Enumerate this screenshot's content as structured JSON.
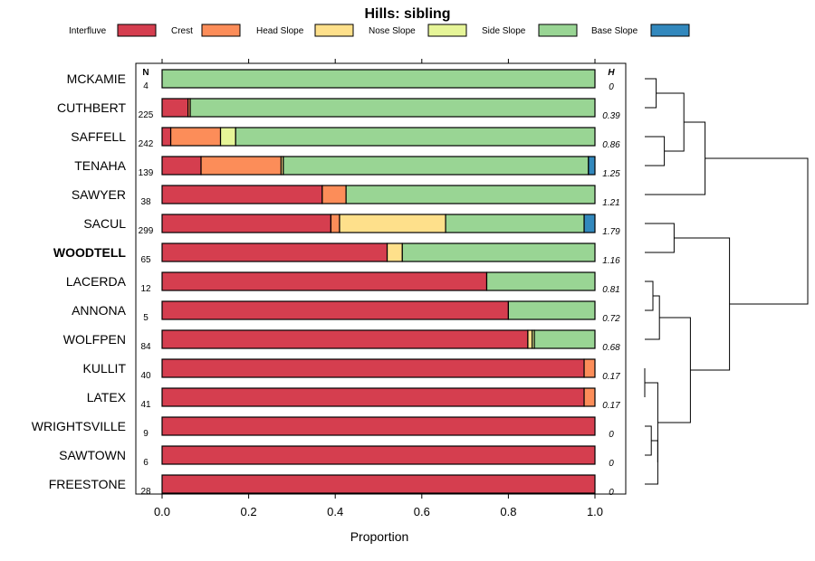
{
  "chart_data": {
    "type": "bar",
    "stacked": true,
    "orientation": "horizontal",
    "title": "Hills: sibling",
    "xlabel": "Proportion",
    "xlim": [
      0,
      1
    ],
    "xticks": [
      "0.0",
      "0.2",
      "0.4",
      "0.6",
      "0.8",
      "1.0"
    ],
    "n_header": "N",
    "h_header": "H",
    "legend": [
      {
        "name": "Interfluve",
        "color": "#d53e4f"
      },
      {
        "name": "Crest",
        "color": "#fc8d59"
      },
      {
        "name": "Head Slope",
        "color": "#fee08b"
      },
      {
        "name": "Nose Slope",
        "color": "#e6f598"
      },
      {
        "name": "Side Slope",
        "color": "#99d594"
      },
      {
        "name": "Base Slope",
        "color": "#3288bd"
      }
    ],
    "categories": [
      "MCKAMIE",
      "CUTHBERT",
      "SAFFELL",
      "TENAHA",
      "SAWYER",
      "SACUL",
      "WOODTELL",
      "LACERDA",
      "ANNONA",
      "WOLFPEN",
      "KULLIT",
      "LATEX",
      "WRIGHTSVILLE",
      "SAWTOWN",
      "FREESTONE"
    ],
    "highlight": "WOODTELL",
    "n": [
      "4",
      "225",
      "242",
      "139",
      "38",
      "299",
      "65",
      "12",
      "5",
      "84",
      "40",
      "41",
      "9",
      "6",
      "28"
    ],
    "h": [
      "0",
      "0.39",
      "0.86",
      "1.25",
      "1.21",
      "1.79",
      "1.16",
      "0.81",
      "0.72",
      "0.68",
      "0.17",
      "0.17",
      "0",
      "0",
      "0"
    ],
    "series": [
      {
        "name": "Interfluve",
        "values": [
          0,
          0.06,
          0.02,
          0.09,
          0.37,
          0.39,
          0.52,
          0.75,
          0.8,
          0.845,
          0.975,
          0.975,
          1,
          1,
          1
        ]
      },
      {
        "name": "Crest",
        "values": [
          0,
          0.005,
          0.115,
          0.185,
          0.055,
          0.02,
          0,
          0,
          0,
          0,
          0.025,
          0.025,
          0,
          0,
          0
        ]
      },
      {
        "name": "Head Slope",
        "values": [
          0,
          0,
          0,
          0.005,
          0,
          0.245,
          0.035,
          0,
          0,
          0.01,
          0,
          0,
          0,
          0,
          0
        ]
      },
      {
        "name": "Nose Slope",
        "values": [
          0,
          0,
          0.035,
          0,
          0,
          0,
          0,
          0,
          0,
          0.005,
          0,
          0,
          0,
          0,
          0
        ]
      },
      {
        "name": "Side Slope",
        "values": [
          1,
          0.935,
          0.83,
          0.705,
          0.575,
          0.32,
          0.445,
          0.25,
          0.2,
          0.14,
          0,
          0,
          0,
          0,
          0
        ]
      },
      {
        "name": "Base Slope",
        "values": [
          0,
          0,
          0,
          0.015,
          0,
          0.025,
          0,
          0,
          0,
          0,
          0,
          0,
          0,
          0,
          0
        ]
      }
    ],
    "dendrogram": {
      "leaf_order": [
        "MCKAMIE",
        "CUTHBERT",
        "SAFFELL",
        "TENAHA",
        "SAWYER",
        "SACUL",
        "WOODTELL",
        "LACERDA",
        "ANNONA",
        "WOLFPEN",
        "KULLIT",
        "LATEX",
        "WRIGHTSVILLE",
        "SAWTOWN",
        "FREESTONE"
      ],
      "merges": [
        {
          "a": "MCKAMIE",
          "b": "CUTHBERT",
          "height": 0.07
        },
        {
          "a": "SAFFELL",
          "b": "TENAHA",
          "height": 0.12
        },
        {
          "a": 0,
          "b": 1,
          "height": 0.24
        },
        {
          "a": 2,
          "b": "SAWYER",
          "height": 0.37
        },
        {
          "a": "SACUL",
          "b": "WOODTELL",
          "height": 0.18
        },
        {
          "a": "LACERDA",
          "b": "ANNONA",
          "height": 0.05
        },
        {
          "a": 5,
          "b": "WOLFPEN",
          "height": 0.09
        },
        {
          "a": "KULLIT",
          "b": "LATEX",
          "height": 0.0
        },
        {
          "a": "WRIGHTSVILLE",
          "b": "SAWTOWN",
          "height": 0.04
        },
        {
          "a": 8,
          "b": "FREESTONE",
          "height": 0.08
        },
        {
          "a": 7,
          "b": 9,
          "height": 0.08
        },
        {
          "a": 6,
          "b": 10,
          "height": 0.28
        },
        {
          "a": 4,
          "b": 11,
          "height": 0.52
        },
        {
          "a": 3,
          "b": 12,
          "height": 1.0
        }
      ]
    }
  }
}
